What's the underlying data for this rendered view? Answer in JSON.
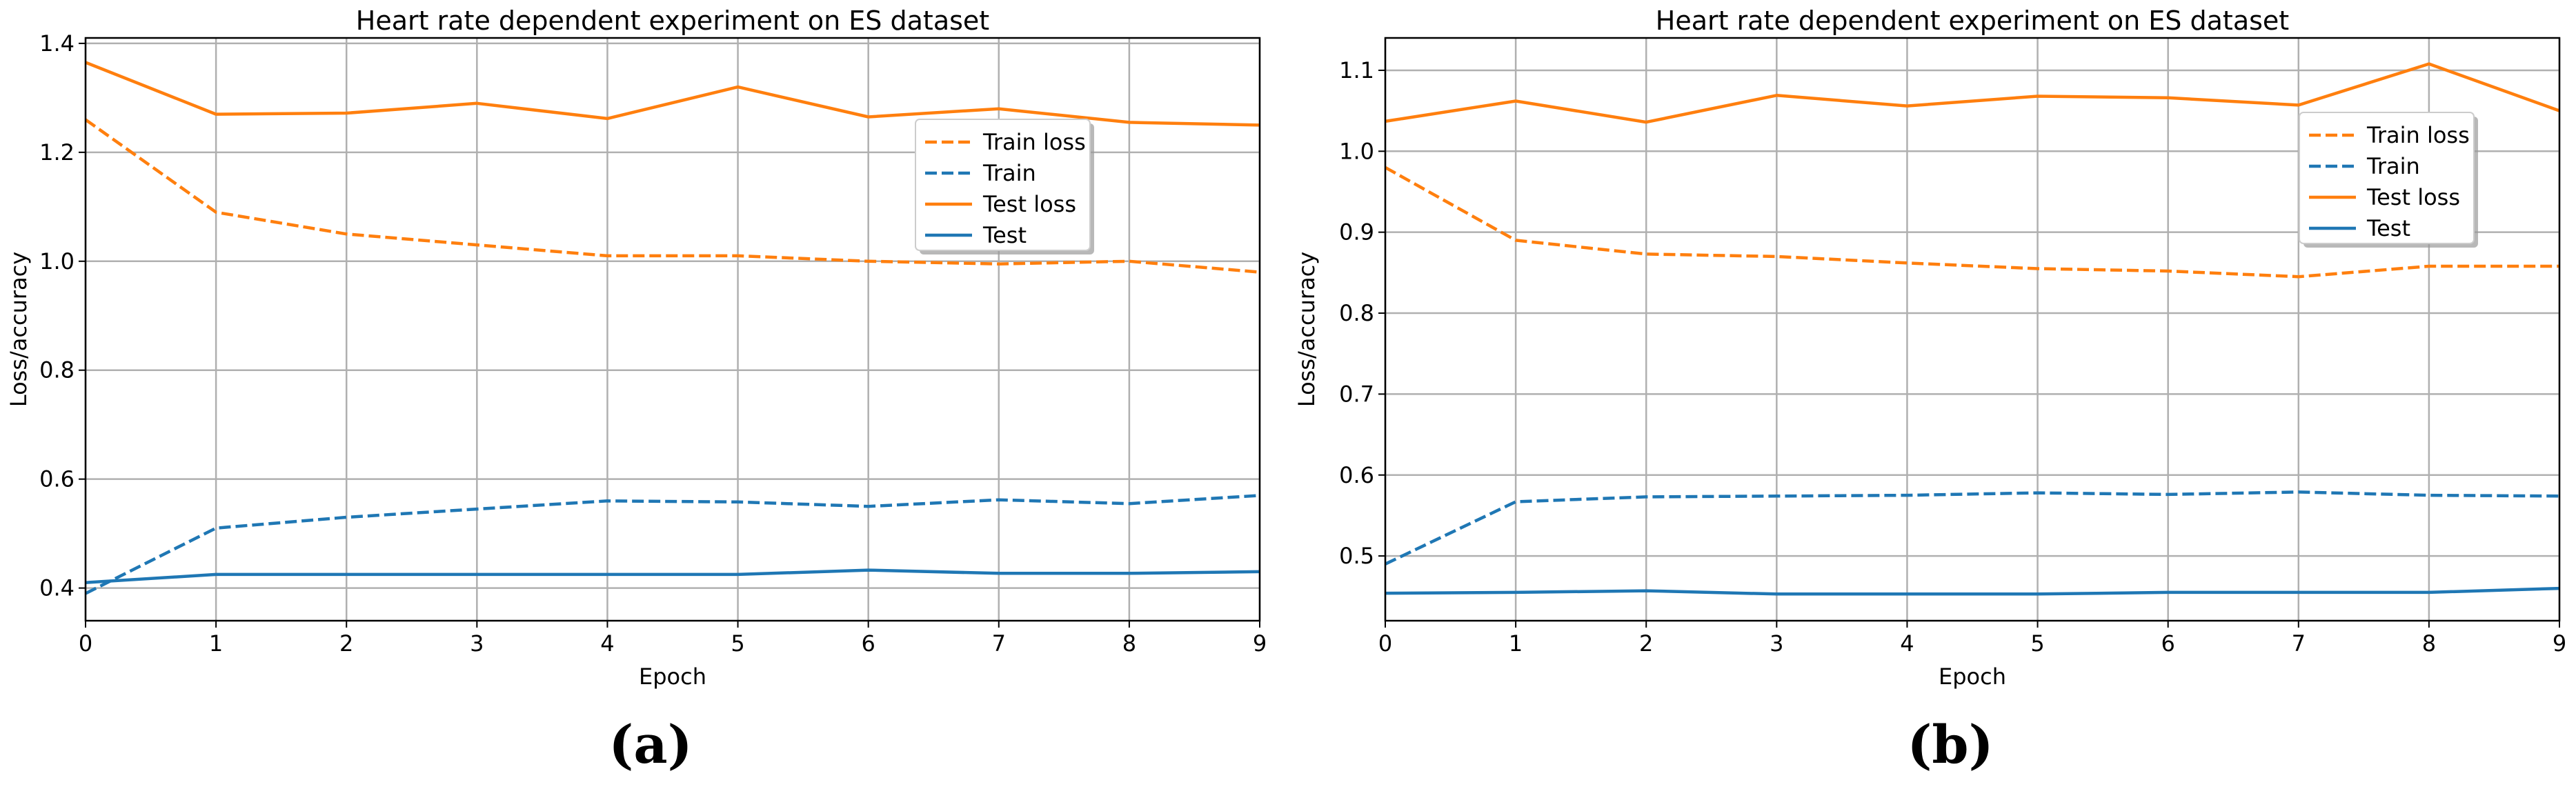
{
  "chart_data": [
    {
      "type": "line",
      "title": "Heart rate dependent experiment on ES dataset",
      "xlabel": "Epoch",
      "ylabel": "Loss/accuracy",
      "x": [
        0,
        1,
        2,
        3,
        4,
        5,
        6,
        7,
        8,
        9
      ],
      "xlim": [
        0,
        9
      ],
      "ylim": [
        0.34,
        1.41
      ],
      "xticks": [
        "0",
        "1",
        "2",
        "3",
        "4",
        "5",
        "6",
        "7",
        "8",
        "9"
      ],
      "yticks": [
        "0.4",
        "0.6",
        "0.8",
        "1.0",
        "1.2",
        "1.4"
      ],
      "grid": true,
      "legend_position": "upper-right",
      "caption": "(a)",
      "series": [
        {
          "name": "Train loss",
          "color": "#ff7f0e",
          "style": "dashed",
          "values": [
            1.26,
            1.09,
            1.05,
            1.03,
            1.01,
            1.01,
            1.0,
            0.995,
            1.0,
            0.98
          ]
        },
        {
          "name": "Train",
          "color": "#1f77b4",
          "style": "dashed",
          "values": [
            0.39,
            0.51,
            0.53,
            0.545,
            0.56,
            0.558,
            0.55,
            0.562,
            0.555,
            0.57
          ]
        },
        {
          "name": "Test loss",
          "color": "#ff7f0e",
          "style": "solid",
          "values": [
            1.365,
            1.27,
            1.272,
            1.29,
            1.262,
            1.32,
            1.265,
            1.28,
            1.255,
            1.25
          ]
        },
        {
          "name": "Test",
          "color": "#1f77b4",
          "style": "solid",
          "values": [
            0.41,
            0.425,
            0.425,
            0.425,
            0.425,
            0.425,
            0.433,
            0.427,
            0.427,
            0.43
          ]
        }
      ]
    },
    {
      "type": "line",
      "title": "Heart rate dependent experiment on ES dataset",
      "xlabel": "Epoch",
      "ylabel": "Loss/accuracy",
      "x": [
        0,
        1,
        2,
        3,
        4,
        5,
        6,
        7,
        8,
        9
      ],
      "xlim": [
        0,
        9
      ],
      "ylim": [
        0.42,
        1.14
      ],
      "xticks": [
        "0",
        "1",
        "2",
        "3",
        "4",
        "5",
        "6",
        "7",
        "8",
        "9"
      ],
      "yticks": [
        "0.5",
        "0.6",
        "0.7",
        "0.8",
        "0.9",
        "1.0",
        "1.1"
      ],
      "grid": true,
      "legend_position": "upper-right",
      "caption": "(b)",
      "series": [
        {
          "name": "Train loss",
          "color": "#ff7f0e",
          "style": "dashed",
          "values": [
            0.98,
            0.89,
            0.873,
            0.87,
            0.862,
            0.855,
            0.852,
            0.845,
            0.858,
            0.858
          ]
        },
        {
          "name": "Train",
          "color": "#1f77b4",
          "style": "dashed",
          "values": [
            0.49,
            0.567,
            0.573,
            0.574,
            0.575,
            0.578,
            0.576,
            0.579,
            0.575,
            0.574
          ]
        },
        {
          "name": "Test loss",
          "color": "#ff7f0e",
          "style": "solid",
          "values": [
            1.037,
            1.062,
            1.036,
            1.069,
            1.056,
            1.068,
            1.066,
            1.057,
            1.108,
            1.05
          ]
        },
        {
          "name": "Test",
          "color": "#1f77b4",
          "style": "solid",
          "values": [
            0.454,
            0.455,
            0.457,
            0.453,
            0.453,
            0.453,
            0.455,
            0.455,
            0.455,
            0.46
          ]
        }
      ]
    }
  ]
}
